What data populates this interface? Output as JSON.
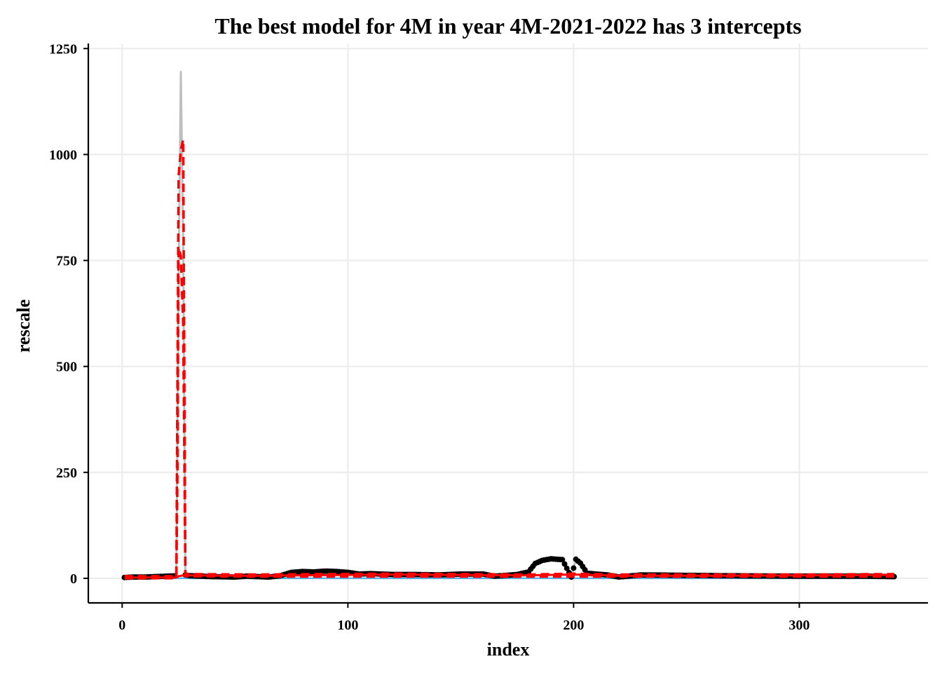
{
  "chart_data": {
    "type": "line",
    "title": "The best model for 4M in year 4M-2021-2022 has 3 intercepts",
    "xlabel": "index",
    "ylabel": "rescale",
    "xlim": [
      -15,
      357
    ],
    "ylim": [
      -58,
      1262
    ],
    "x_ticks": [
      0,
      100,
      200,
      300
    ],
    "y_ticks": [
      0,
      250,
      500,
      750,
      1000,
      1250
    ],
    "x_tick_labels": [
      "0",
      "100",
      "200",
      "300"
    ],
    "y_tick_labels": [
      "0",
      "250",
      "500",
      "750",
      "1000",
      "1250"
    ],
    "grid": true,
    "colors": {
      "observed_points": "#000000",
      "observed_line": "#bfbfbf",
      "fitted_line": "#ff0000",
      "fitted_interval": "#ff0000",
      "baseline": "#56b4e9",
      "grid": "#ebebeb"
    },
    "series": [
      {
        "role": "observed",
        "style": "points-with-grey-line",
        "x": [
          1,
          5,
          10,
          15,
          20,
          24,
          25,
          26,
          27,
          28,
          30,
          40,
          50,
          55,
          60,
          65,
          70,
          75,
          80,
          85,
          90,
          95,
          100,
          105,
          110,
          120,
          130,
          140,
          150,
          160,
          165,
          170,
          175,
          180,
          183,
          186,
          190,
          195,
          199,
          201,
          203,
          206,
          210,
          215,
          220,
          230,
          250,
          270,
          300,
          330,
          342
        ],
        "y": [
          2,
          3,
          3,
          4,
          5,
          6,
          700,
          1195,
          800,
          8,
          6,
          4,
          3,
          5,
          4,
          3,
          6,
          14,
          16,
          15,
          17,
          16,
          14,
          10,
          11,
          9,
          9,
          8,
          10,
          10,
          5,
          7,
          9,
          15,
          35,
          42,
          46,
          44,
          3,
          45,
          36,
          12,
          10,
          8,
          3,
          8,
          7,
          6,
          5,
          5,
          4
        ]
      },
      {
        "role": "fitted",
        "style": "solid",
        "x": [
          1,
          24,
          25,
          26,
          27,
          28,
          60,
          120,
          180,
          200,
          220,
          260,
          300,
          342
        ],
        "y": [
          2,
          2,
          5,
          6,
          7,
          7,
          6,
          9,
          7,
          9,
          6,
          6,
          7,
          8
        ]
      },
      {
        "role": "upper_bound",
        "style": "dashed",
        "x": [
          1,
          24,
          25,
          26,
          27,
          28,
          60,
          120,
          180,
          200,
          220,
          260,
          300,
          342
        ],
        "y": [
          5,
          5,
          950,
          1010,
          1035,
          10,
          9,
          11,
          9,
          11,
          9,
          9,
          9,
          10
        ]
      },
      {
        "role": "lower_bound",
        "style": "dashed",
        "x": [
          1,
          24,
          24.5,
          25,
          26,
          27,
          28,
          60,
          120,
          180,
          200,
          220,
          260,
          300,
          342
        ],
        "y": [
          0,
          0,
          250,
          780,
          760,
          600,
          5,
          4,
          4,
          4,
          4,
          4,
          4,
          4,
          4
        ]
      },
      {
        "role": "baseline",
        "style": "solid",
        "x": [
          1,
          342
        ],
        "y": [
          0,
          0
        ]
      }
    ]
  }
}
